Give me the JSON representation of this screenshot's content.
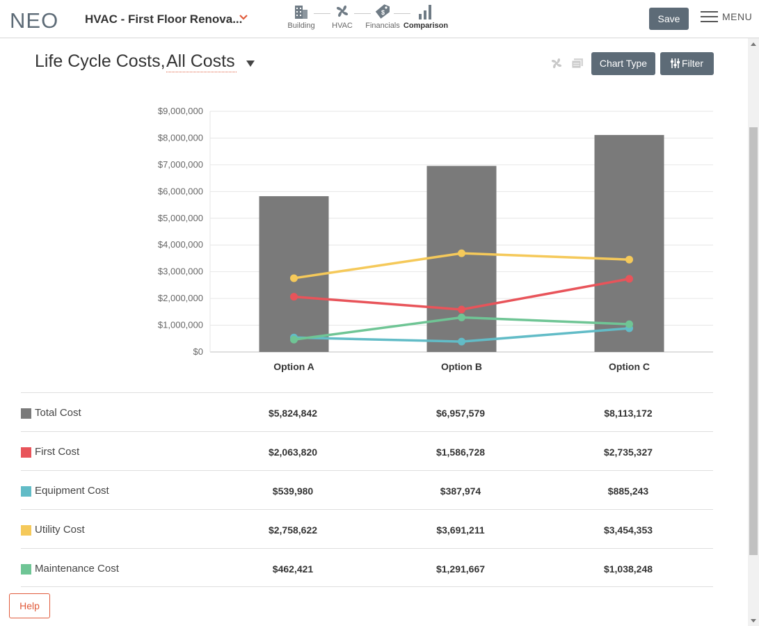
{
  "header": {
    "logo": "NEO",
    "project_title": "HVAC - First Floor Renova...",
    "steps": [
      {
        "label": "Building",
        "icon": "building-icon"
      },
      {
        "label": "HVAC",
        "icon": "fan-icon"
      },
      {
        "label": "Financials",
        "icon": "price-tag-icon"
      },
      {
        "label": "Comparison",
        "icon": "bar-chart-icon",
        "active": true
      }
    ],
    "save_label": "Save",
    "menu_label": "MENU"
  },
  "page": {
    "title_prefix": "Life Cycle Costs,",
    "cost_filter_value": "All Costs",
    "chart_type_label": "Chart Type",
    "filter_label": "Filter",
    "help_label": "Help"
  },
  "chart_data": {
    "type": "bar",
    "categories": [
      "Option A",
      "Option B",
      "Option C"
    ],
    "ylim": [
      0,
      9000000
    ],
    "yticks": [
      "$0",
      "$1,000,000",
      "$2,000,000",
      "$3,000,000",
      "$4,000,000",
      "$5,000,000",
      "$6,000,000",
      "$7,000,000",
      "$8,000,000",
      "$9,000,000"
    ],
    "grid": true,
    "series": [
      {
        "name": "Total Cost",
        "kind": "bar",
        "color": "#7a7a7a",
        "values": [
          5824842,
          6957579,
          8113172
        ]
      },
      {
        "name": "First Cost",
        "kind": "line",
        "color": "#e8545a",
        "values": [
          2063820,
          1586728,
          2735327
        ]
      },
      {
        "name": "Equipment Cost",
        "kind": "line",
        "color": "#62bcc7",
        "values": [
          539980,
          387974,
          885243
        ]
      },
      {
        "name": "Utility Cost",
        "kind": "line",
        "color": "#f5c95a",
        "values": [
          2758622,
          3691211,
          3454353
        ]
      },
      {
        "name": "Maintenance Cost",
        "kind": "line",
        "color": "#6fc595",
        "values": [
          462421,
          1291667,
          1038248
        ]
      }
    ]
  },
  "table": {
    "rows": [
      {
        "label": "Total Cost",
        "color": "#7a7a7a",
        "values": [
          "$5,824,842",
          "$6,957,579",
          "$8,113,172"
        ]
      },
      {
        "label": "First Cost",
        "color": "#e8545a",
        "values": [
          "$2,063,820",
          "$1,586,728",
          "$2,735,327"
        ]
      },
      {
        "label": "Equipment Cost",
        "color": "#62bcc7",
        "values": [
          "$539,980",
          "$387,974",
          "$885,243"
        ]
      },
      {
        "label": "Utility Cost",
        "color": "#f5c95a",
        "values": [
          "$2,758,622",
          "$3,691,211",
          "$3,454,353"
        ]
      },
      {
        "label": "Maintenance Cost",
        "color": "#6fc595",
        "values": [
          "$462,421",
          "$1,291,667",
          "$1,038,248"
        ]
      }
    ]
  }
}
